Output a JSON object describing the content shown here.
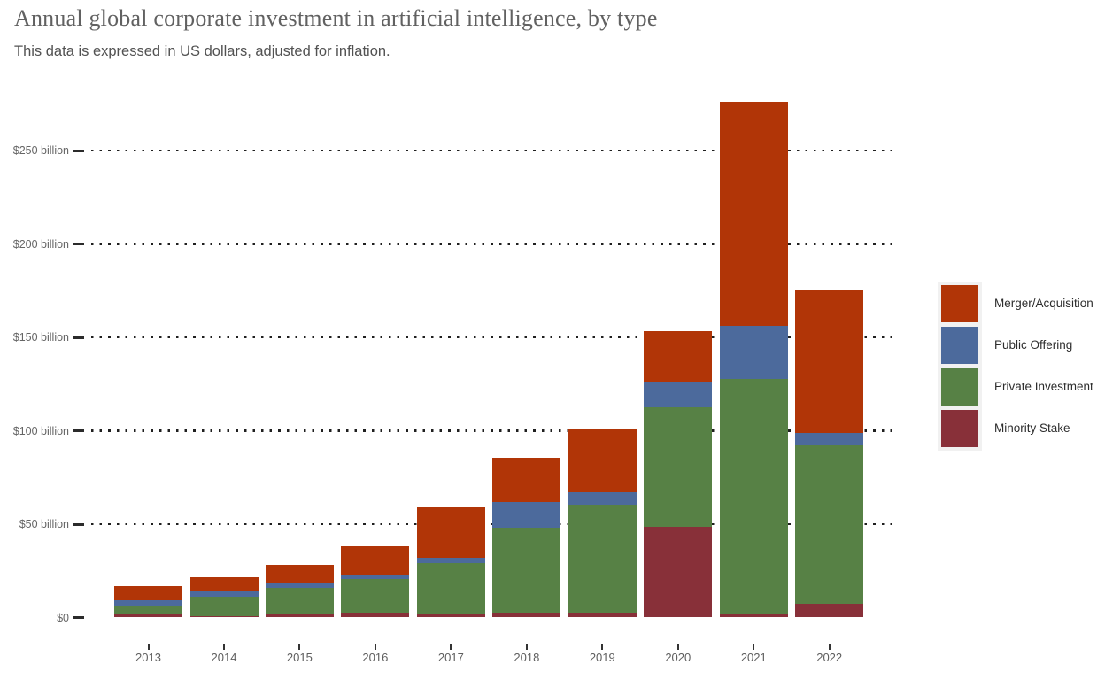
{
  "header": {
    "title": "Annual global corporate investment in artificial intelligence, by type",
    "subtitle": "This data is expressed in US dollars, adjusted for inflation."
  },
  "chart_data": {
    "type": "bar",
    "stacked": true,
    "title": "Annual global corporate investment in artificial intelligence, by type",
    "subtitle": "This data is expressed in US dollars, adjusted for inflation.",
    "unit": "US$ billions",
    "categories": [
      "2013",
      "2014",
      "2015",
      "2016",
      "2017",
      "2018",
      "2019",
      "2020",
      "2021",
      "2022"
    ],
    "series": [
      {
        "name": "Minority Stake",
        "color": "#883039",
        "values": [
          1.7,
          0.7,
          1.7,
          2.5,
          1.5,
          2.5,
          2.7,
          48.7,
          1.7,
          7.2
        ]
      },
      {
        "name": "Private Investment",
        "color": "#578145",
        "values": [
          4.6,
          10.3,
          14.1,
          18.3,
          27.6,
          45.6,
          57.7,
          63.8,
          125.9,
          84.8
        ]
      },
      {
        "name": "Public Offering",
        "color": "#4c6a9c",
        "values": [
          3.1,
          2.8,
          2.8,
          2.2,
          2.8,
          13.6,
          6.6,
          13.7,
          28.4,
          6.6
        ]
      },
      {
        "name": "Merger/Acquisition",
        "color": "#b13507",
        "values": [
          7.3,
          7.6,
          9.5,
          15.3,
          26.9,
          24.0,
          34.1,
          27.0,
          120.0,
          76.6
        ]
      }
    ],
    "stack_order_bottom_to_top": [
      "Minority Stake",
      "Private Investment",
      "Public Offering",
      "Merger/Acquisition"
    ],
    "totals": [
      16.7,
      21.4,
      28.1,
      38.3,
      58.8,
      85.7,
      101.1,
      153.2,
      276.0,
      175.2
    ],
    "xlabel": "",
    "ylabel": "",
    "ylim": [
      0,
      280
    ],
    "grid": "dotted-horizontal",
    "y_axis": {
      "ticks": [
        0,
        50,
        100,
        150,
        200,
        250
      ],
      "tick_labels": [
        "$0",
        "$50 billion",
        "$100 billion",
        "$150 billion",
        "$200 billion",
        "$250 billion"
      ]
    },
    "legend": {
      "position": "right",
      "items_top_to_bottom": [
        "Merger/Acquisition",
        "Public Offering",
        "Private Investment",
        "Minority Stake"
      ]
    }
  }
}
